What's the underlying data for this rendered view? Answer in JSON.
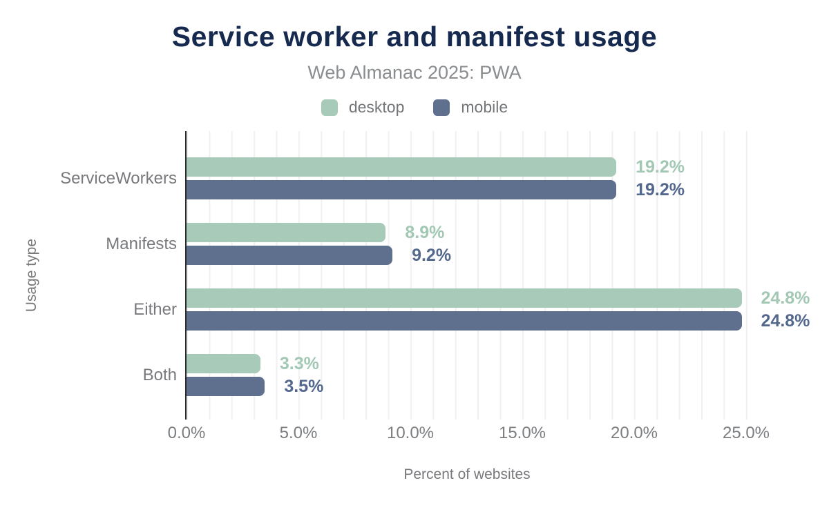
{
  "header": {
    "title": "Service worker and manifest usage",
    "subtitle": "Web Almanac 2025: PWA"
  },
  "legend": [
    {
      "label": "desktop",
      "color": "#a7cbb8"
    },
    {
      "label": "mobile",
      "color": "#5f708e"
    }
  ],
  "colors": {
    "title": "#16294e",
    "subtitle": "#8a8d90",
    "axis_text": "#77797c",
    "axis_line": "#2b2b2b",
    "gridline": "#f0f0f2"
  },
  "chart_data": {
    "type": "bar",
    "orientation": "horizontal",
    "title": "Service worker and manifest usage",
    "subtitle": "Web Almanac 2025: PWA",
    "categories": [
      "ServiceWorkers",
      "Manifests",
      "Either",
      "Both"
    ],
    "series": [
      {
        "name": "desktop",
        "color": "#a7cbb8",
        "label_color": "#a2c8b4",
        "values": [
          19.2,
          8.9,
          24.8,
          3.3
        ],
        "labels": [
          "19.2%",
          "8.9%",
          "24.8%",
          "3.3%"
        ]
      },
      {
        "name": "mobile",
        "color": "#5f708e",
        "label_color": "#54688e",
        "values": [
          19.2,
          9.2,
          24.8,
          3.5
        ],
        "labels": [
          "19.2%",
          "9.2%",
          "24.8%",
          "3.5%"
        ]
      }
    ],
    "xlabel": "Percent of websites",
    "ylabel": "Usage type",
    "xlim": [
      0,
      25
    ],
    "xticks": [
      {
        "value": 0,
        "label": "0.0%"
      },
      {
        "value": 5,
        "label": "5.0%"
      },
      {
        "value": 10,
        "label": "10.0%"
      },
      {
        "value": 15,
        "label": "15.0%"
      },
      {
        "value": 20,
        "label": "20.0%"
      },
      {
        "value": 25,
        "label": "25.0%"
      }
    ],
    "grid": "vertical minor gridlines every 1%",
    "legend_position": "top"
  }
}
